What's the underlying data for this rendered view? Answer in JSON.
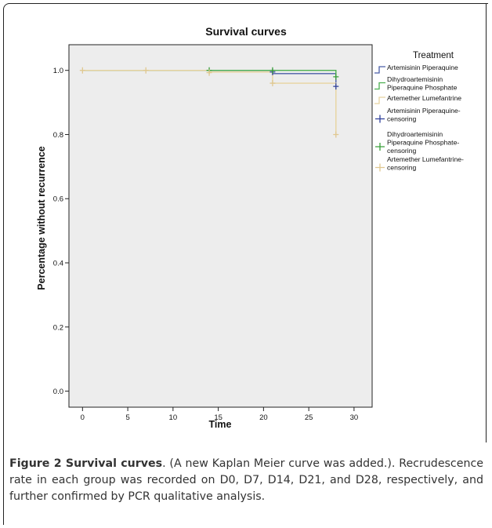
{
  "chart_data": {
    "type": "line",
    "title": "Survival curves",
    "xlabel": "Time",
    "ylabel": "Percentage without recurrence",
    "xlim": [
      -1.5,
      32
    ],
    "ylim": [
      -0.05,
      1.08
    ],
    "x_ticks": [
      0,
      5,
      10,
      15,
      20,
      25,
      30
    ],
    "x_tick_labels": [
      "0",
      "5",
      "10",
      "15",
      "20",
      "25",
      "30"
    ],
    "y_ticks": [
      0.0,
      0.2,
      0.4,
      0.6,
      0.8,
      1.0
    ],
    "y_tick_labels": [
      "0.0",
      "0.2",
      "0.4",
      "0.6",
      "0.8",
      "1.0"
    ],
    "grid": false,
    "legend_title": "Treatment",
    "legend_position": "right",
    "series": [
      {
        "name": "Artemisinin Piperaquine",
        "color": "#4a5ea8",
        "step": [
          [
            0,
            1.0
          ],
          [
            21,
            0.99
          ],
          [
            28,
            0.95
          ]
        ]
      },
      {
        "name": "Dihydroartemisinin Piperaquine Phosphate",
        "color": "#4caf50",
        "step": [
          [
            0,
            1.0
          ],
          [
            28,
            0.98
          ]
        ]
      },
      {
        "name": "Artemether Lumefantrine",
        "color": "#e8d4a0",
        "step": [
          [
            0,
            1.0
          ],
          [
            14,
            0.995
          ],
          [
            21,
            0.96
          ],
          [
            28,
            0.8
          ]
        ]
      }
    ],
    "censoring": [
      {
        "name": "Artemisinin Piperaquine-censoring",
        "color": "#2e3f9a",
        "points": [
          [
            21,
            0.995
          ],
          [
            28,
            0.95
          ]
        ]
      },
      {
        "name": "Dihydroartemisinin Piperaquine Phosphate-censoring",
        "color": "#3aa03a",
        "points": [
          [
            14,
            1.0
          ],
          [
            21,
            1.0
          ],
          [
            28,
            0.98
          ]
        ]
      },
      {
        "name": "Artemether Lumefantrine-censoring",
        "color": "#e0c890",
        "points": [
          [
            0,
            1.0
          ],
          [
            7,
            1.0
          ],
          [
            14,
            0.993
          ],
          [
            21,
            0.96
          ],
          [
            28,
            0.8
          ]
        ]
      }
    ],
    "legend_entries": [
      {
        "label": "Artemisinin Piperaquine",
        "kind": "line",
        "color": "#4a5ea8"
      },
      {
        "label": "Dihydroartemisinin Piperaquine Phosphate",
        "kind": "line",
        "color": "#4caf50"
      },
      {
        "label": "Artemether Lumefantrine",
        "kind": "line",
        "color": "#e8d4a0"
      },
      {
        "label": "Artemisinin Piperaquine-censoring",
        "kind": "censor",
        "color": "#2e3f9a"
      },
      {
        "label": "Dihydroartemisinin Piperaquine Phosphate-censoring",
        "kind": "censor",
        "color": "#3aa03a"
      },
      {
        "label": "Artemether Lumefantrine-censoring",
        "kind": "censor",
        "color": "#e0c890"
      }
    ]
  },
  "caption": {
    "lead": "Figure 2 Survival curves",
    "body": ". (A new Kaplan Meier curve was added.). Recrudescence rate in each group was recorded on D0, D7, D14, D21, and D28, respectively, and further confirmed by PCR qualitative analysis."
  },
  "colors": {
    "plot_background": "#ededed",
    "axis": "#333333"
  }
}
